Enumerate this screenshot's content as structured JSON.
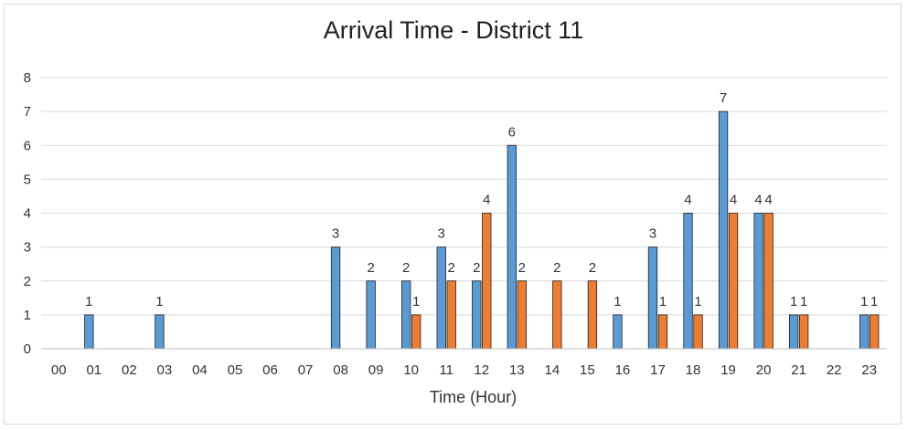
{
  "chart_data": {
    "type": "bar",
    "title": "Arrival Time - District 11",
    "xlabel": "Time (Hour)",
    "ylabel": "",
    "ylim": [
      0,
      8
    ],
    "yticks": [
      0,
      1,
      2,
      3,
      4,
      5,
      6,
      7,
      8
    ],
    "grid": true,
    "legend": "none",
    "categories": [
      "00",
      "01",
      "02",
      "03",
      "04",
      "05",
      "06",
      "07",
      "08",
      "09",
      "10",
      "11",
      "12",
      "13",
      "14",
      "15",
      "16",
      "17",
      "18",
      "19",
      "20",
      "21",
      "22",
      "23"
    ],
    "series": [
      {
        "color": "#5b9bd5",
        "values": [
          0,
          1,
          0,
          1,
          0,
          0,
          0,
          0,
          3,
          2,
          2,
          3,
          2,
          6,
          0,
          0,
          1,
          3,
          4,
          7,
          4,
          1,
          0,
          1
        ]
      },
      {
        "color": "#ed7d31",
        "values": [
          0,
          0,
          0,
          0,
          0,
          0,
          0,
          0,
          0,
          0,
          1,
          2,
          4,
          2,
          2,
          2,
          0,
          1,
          1,
          4,
          4,
          1,
          0,
          1
        ]
      }
    ]
  }
}
